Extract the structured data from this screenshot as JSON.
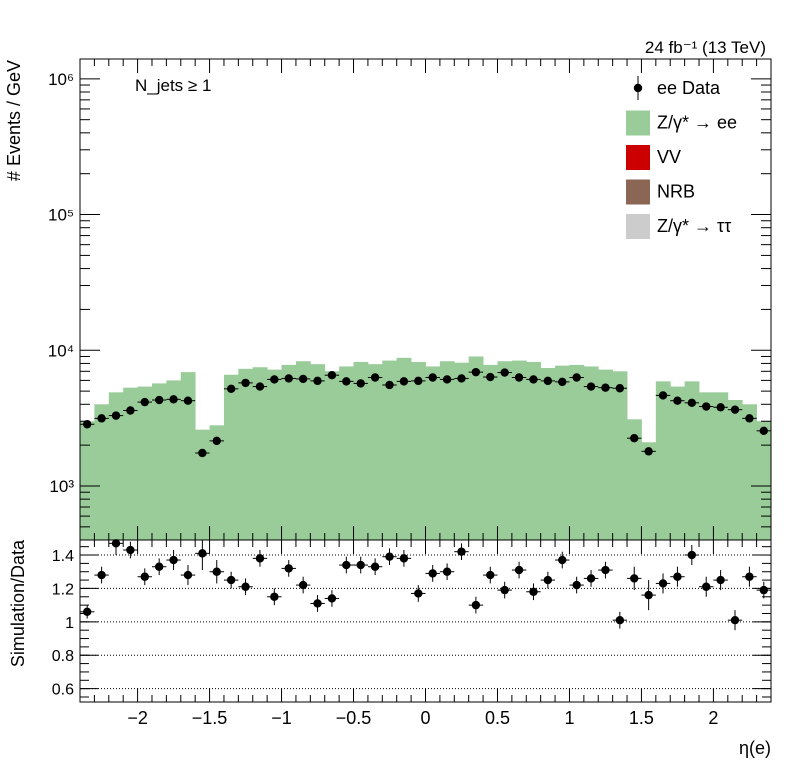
{
  "chart_data": [
    {
      "type": "bar",
      "panel": "main",
      "lumi_label": "24 fb⁻¹ (13 TeV)",
      "annotation": "N_jets ≥ 1",
      "ylabel": "# Events / GeV",
      "yscale": "log",
      "ylim": [
        400,
        1400000
      ],
      "y_ticks": [
        {
          "label": "10³",
          "value": 1000
        },
        {
          "label": "10⁴",
          "value": 10000
        },
        {
          "label": "10⁵",
          "value": 100000
        },
        {
          "label": "10⁶",
          "value": 1000000
        }
      ],
      "xlim": [
        -2.4,
        2.4
      ],
      "legend_position": "top-right",
      "legend": [
        {
          "label": "ee Data",
          "kind": "marker",
          "color": "#000000"
        },
        {
          "label": "Z/γ* → ee",
          "kind": "fill",
          "color": "#99cc99"
        },
        {
          "label": "VV",
          "kind": "fill",
          "color": "#cc0000"
        },
        {
          "label": "NRB",
          "kind": "fill",
          "color": "#8b6654"
        },
        {
          "label": "Z/γ* → ττ",
          "kind": "fill",
          "color": "#cccccc"
        }
      ],
      "bin_edges": [
        -2.4,
        -2.3,
        -2.2,
        -2.1,
        -2.0,
        -1.9,
        -1.8,
        -1.7,
        -1.6,
        -1.5,
        -1.4,
        -1.3,
        -1.2,
        -1.1,
        -1.0,
        -0.9,
        -0.8,
        -0.7,
        -0.6,
        -0.5,
        -0.4,
        -0.3,
        -0.2,
        -0.1,
        0.0,
        0.1,
        0.2,
        0.3,
        0.4,
        0.5,
        0.6,
        0.7,
        0.8,
        0.9,
        1.0,
        1.1,
        1.2,
        1.3,
        1.4,
        1.5,
        1.6,
        1.7,
        1.8,
        1.9,
        2.0,
        2.1,
        2.2,
        2.3,
        2.4
      ],
      "series": [
        {
          "name": "Z/γ* → ee",
          "values": [
            3000,
            4000,
            4900,
            5300,
            5400,
            5700,
            6000,
            6900,
            2600,
            2800,
            6600,
            7300,
            7500,
            7200,
            7800,
            8300,
            7900,
            7000,
            7600,
            8200,
            7900,
            8400,
            8800,
            8200,
            7600,
            8300,
            8100,
            9000,
            7800,
            8300,
            8400,
            8200,
            7400,
            7700,
            7800,
            7600,
            7200,
            7000,
            3100,
            2100,
            5900,
            5400,
            5900,
            4900,
            4900,
            4300,
            4000,
            3000
          ]
        },
        {
          "name": "ee Data",
          "values": [
            2850,
            3150,
            3300,
            3600,
            4150,
            4300,
            4350,
            4250,
            1750,
            2150,
            5200,
            5750,
            5400,
            6100,
            6200,
            6150,
            5950,
            6550,
            5900,
            5700,
            6300,
            5550,
            5900,
            5950,
            6300,
            6100,
            6200,
            6900,
            6350,
            6850,
            6300,
            6100,
            5950,
            5850,
            6300,
            5400,
            5300,
            5250,
            2250,
            1800,
            4650,
            4250,
            4100,
            3850,
            3800,
            3650,
            3150,
            2550
          ]
        }
      ]
    },
    {
      "type": "scatter",
      "panel": "ratio",
      "ylabel": "Simulation/Data",
      "xlabel": "η(e)",
      "ylim": [
        0.52,
        1.49
      ],
      "y_ticks": [
        {
          "label": "0.6",
          "value": 0.6
        },
        {
          "label": "0.8",
          "value": 0.8
        },
        {
          "label": "1",
          "value": 1.0
        },
        {
          "label": "1.2",
          "value": 1.2
        },
        {
          "label": "1.4",
          "value": 1.4
        }
      ],
      "x_ticks": [
        {
          "label": "−2",
          "value": -2
        },
        {
          "label": "−1.5",
          "value": -1.5
        },
        {
          "label": "−1",
          "value": -1
        },
        {
          "label": "−0.5",
          "value": -0.5
        },
        {
          "label": "0",
          "value": 0
        },
        {
          "label": "0.5",
          "value": 0.5
        },
        {
          "label": "1",
          "value": 1
        },
        {
          "label": "1.5",
          "value": 1.5
        },
        {
          "label": "2",
          "value": 2
        }
      ],
      "xlim": [
        -2.4,
        2.4
      ],
      "reference_lines": [
        0.6,
        0.8,
        1.0,
        1.2,
        1.4
      ],
      "series": [
        {
          "values": [
            1.06,
            1.28,
            1.47,
            1.43,
            1.27,
            1.33,
            1.37,
            1.28,
            1.41,
            1.3,
            1.25,
            1.21,
            1.38,
            1.15,
            1.32,
            1.22,
            1.11,
            1.14,
            1.34,
            1.34,
            1.33,
            1.39,
            1.38,
            1.17,
            1.29,
            1.3,
            1.42,
            1.1,
            1.28,
            1.19,
            1.31,
            1.18,
            1.25,
            1.37,
            1.22,
            1.26,
            1.31,
            1.01,
            1.26,
            1.16,
            1.23,
            1.27,
            1.4,
            1.21,
            1.25,
            1.01,
            1.27,
            1.19
          ],
          "errors": [
            0.04,
            0.05,
            0.07,
            0.05,
            0.05,
            0.05,
            0.06,
            0.06,
            0.1,
            0.07,
            0.05,
            0.05,
            0.05,
            0.05,
            0.05,
            0.05,
            0.05,
            0.05,
            0.05,
            0.05,
            0.05,
            0.05,
            0.05,
            0.05,
            0.05,
            0.05,
            0.05,
            0.05,
            0.05,
            0.05,
            0.05,
            0.05,
            0.05,
            0.05,
            0.05,
            0.05,
            0.05,
            0.05,
            0.07,
            0.09,
            0.06,
            0.06,
            0.06,
            0.06,
            0.06,
            0.06,
            0.06,
            0.05
          ]
        }
      ]
    }
  ]
}
